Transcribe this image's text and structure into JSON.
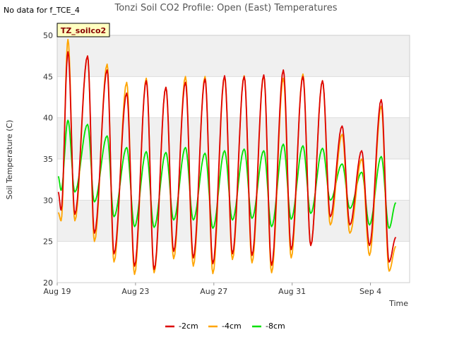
{
  "notice": "No data for f_TCE_4",
  "chart_data": {
    "type": "line",
    "title": "Tonzi Soil CO2 Profile: Open (East) Temperatures",
    "xlabel": "Time",
    "ylabel": "Soil Temperature (C)",
    "ylim": [
      20,
      50
    ],
    "xlim": [
      0,
      18
    ],
    "y_ticks": [
      20,
      25,
      30,
      35,
      40,
      45,
      50
    ],
    "x_ticks": [
      {
        "x": 0,
        "label": "Aug 19"
      },
      {
        "x": 4,
        "label": "Aug 23"
      },
      {
        "x": 8,
        "label": "Aug 27"
      },
      {
        "x": 12,
        "label": "Aug 31"
      },
      {
        "x": 16,
        "label": "Sep 4"
      }
    ],
    "grid": true,
    "legend_placement": "bottom-center",
    "annotation_box": "TZ_soilco2",
    "colors": {
      "-2cm": "#dd0000",
      "-4cm": "#ffa500",
      "-8cm": "#00e000",
      "band": "#f0f0f0",
      "annotation_bg": "#ffffc0",
      "annotation_text": "#880000"
    },
    "x": [
      0.05,
      0.2,
      0.55,
      0.9,
      1.55,
      1.9,
      2.55,
      2.9,
      3.55,
      3.95,
      4.55,
      4.95,
      5.55,
      5.95,
      6.55,
      6.95,
      7.55,
      7.95,
      8.55,
      8.95,
      9.55,
      9.95,
      10.55,
      10.95,
      11.55,
      11.95,
      12.55,
      12.95,
      13.55,
      13.95,
      14.55,
      14.95,
      15.55,
      15.95,
      16.55,
      16.95,
      17.3
    ],
    "series": [
      {
        "name": "-2cm",
        "values": [
          31,
          28.8,
          48,
          28.3,
          47.5,
          26,
          45.8,
          23.5,
          43,
          22,
          44.5,
          21.6,
          43.7,
          23.8,
          44.3,
          23,
          44.7,
          22.3,
          45.1,
          23.5,
          45,
          23.3,
          45.2,
          22.1,
          45.8,
          24,
          45,
          24.5,
          44.5,
          28,
          39,
          27,
          36,
          24.5,
          42.2,
          22.5,
          25.5
        ]
      },
      {
        "name": "-4cm",
        "values": [
          28.5,
          27.5,
          49.5,
          27.5,
          47.5,
          25,
          46.5,
          22.5,
          44.3,
          21,
          44.8,
          21.2,
          43.7,
          22.9,
          45,
          22,
          45,
          21.1,
          45,
          22.8,
          45.1,
          22.4,
          45.1,
          21.2,
          44.8,
          23,
          45.3,
          24.5,
          44.5,
          27,
          38,
          26,
          35,
          23.3,
          41.4,
          21.4,
          24.4
        ]
      },
      {
        "name": "-8cm",
        "values": [
          32.9,
          31.2,
          39.7,
          31,
          39.2,
          29.8,
          37.8,
          28,
          36.4,
          26.8,
          35.9,
          26.7,
          35.8,
          27.6,
          36.4,
          27.6,
          35.7,
          26.6,
          36,
          27.6,
          36.2,
          27.8,
          36,
          26.8,
          36.8,
          27.7,
          36.6,
          28.4,
          36.3,
          30,
          34.4,
          29,
          33.4,
          27,
          35.3,
          26.6,
          29.7
        ]
      }
    ]
  },
  "legend": {
    "items": [
      {
        "label": "-2cm",
        "color": "#dd0000"
      },
      {
        "label": "-4cm",
        "color": "#ffa500"
      },
      {
        "label": "-8cm",
        "color": "#00e000"
      }
    ]
  }
}
